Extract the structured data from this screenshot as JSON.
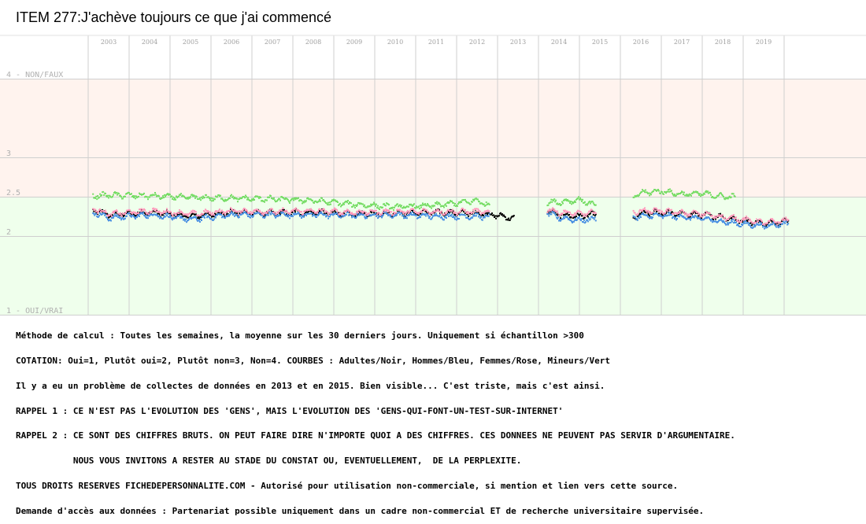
{
  "chart_data": {
    "type": "scatter",
    "title": "ITEM 277:J'achève toujours ce que j'ai commencé",
    "xlabel": "",
    "ylabel": "",
    "x_ticks": [
      "2003",
      "2004",
      "2005",
      "2006",
      "2007",
      "2008",
      "2009",
      "2010",
      "2011",
      "2012",
      "2013",
      "2014",
      "2015",
      "2016",
      "2017",
      "2018",
      "2019"
    ],
    "xlim": [
      2002.5,
      2020.2
    ],
    "y_ticks": [
      {
        "value": 4,
        "label": "4 - NON/FAUX"
      },
      {
        "value": 3,
        "label": "3"
      },
      {
        "value": 2.5,
        "label": "2.5"
      },
      {
        "value": 2,
        "label": "2"
      },
      {
        "value": 1,
        "label": "1 - OUI/VRAI"
      }
    ],
    "ylim": [
      1,
      4
    ],
    "grid": true,
    "band_colors": {
      "upper": "#fff3ee",
      "lower": "#efffec"
    },
    "series": [
      {
        "name": "Adultes",
        "color": "#000000",
        "segments": [
          {
            "x": [
              2002.6,
              2003,
              2004,
              2005,
              2006,
              2007,
              2008,
              2009,
              2010,
              2011,
              2012,
              2012.5,
              2012.9
            ],
            "y": [
              2.33,
              2.27,
              2.3,
              2.25,
              2.3,
              2.29,
              2.3,
              2.28,
              2.29,
              2.3,
              2.29,
              2.26,
              2.22
            ]
          },
          {
            "x": [
              2013.7,
              2014,
              2014.5,
              2014.9
            ],
            "y": [
              2.32,
              2.27,
              2.25,
              2.28
            ]
          },
          {
            "x": [
              2015.8,
              2016,
              2016.5,
              2017,
              2017.5,
              2018,
              2018.5,
              2019,
              2019.6
            ],
            "y": [
              2.22,
              2.29,
              2.3,
              2.28,
              2.27,
              2.24,
              2.19,
              2.16,
              2.19
            ]
          }
        ]
      },
      {
        "name": "Hommes",
        "color": "#4a90e2",
        "segments": [
          {
            "x": [
              2002.6,
              2003,
              2004,
              2005,
              2006,
              2007,
              2008,
              2009,
              2010,
              2011,
              2012,
              2012.3
            ],
            "y": [
              2.3,
              2.23,
              2.27,
              2.21,
              2.27,
              2.27,
              2.27,
              2.26,
              2.27,
              2.25,
              2.25,
              2.24
            ]
          },
          {
            "x": [
              2013.7,
              2014,
              2014.5,
              2014.9
            ],
            "y": [
              2.29,
              2.23,
              2.2,
              2.22
            ]
          },
          {
            "x": [
              2015.8,
              2016,
              2016.5,
              2017,
              2017.5,
              2018,
              2018.5,
              2019,
              2019.6
            ],
            "y": [
              2.24,
              2.25,
              2.26,
              2.24,
              2.22,
              2.18,
              2.15,
              2.13,
              2.16
            ]
          }
        ]
      },
      {
        "name": "Femmes",
        "color": "#ff99bb",
        "segments": [
          {
            "x": [
              2002.6,
              2003,
              2004,
              2005,
              2006,
              2007,
              2008,
              2009,
              2010,
              2011,
              2012,
              2012.3
            ],
            "y": [
              2.35,
              2.28,
              2.32,
              2.28,
              2.32,
              2.31,
              2.32,
              2.3,
              2.31,
              2.31,
              2.31,
              2.3
            ]
          },
          {
            "x": [
              2013.7,
              2014,
              2014.5,
              2014.9
            ],
            "y": [
              2.34,
              2.3,
              2.28,
              2.3
            ]
          },
          {
            "x": [
              2015.8,
              2016,
              2016.5,
              2017,
              2017.5,
              2018,
              2018.5,
              2019,
              2019.6
            ],
            "y": [
              2.3,
              2.32,
              2.32,
              2.29,
              2.28,
              2.24,
              2.21,
              2.17,
              2.2
            ]
          }
        ]
      },
      {
        "name": "Mineurs",
        "color": "#77dd66",
        "segments": [
          {
            "x": [
              2002.6,
              2003,
              2004,
              2005,
              2006,
              2007,
              2008,
              2009,
              2010,
              2011,
              2012,
              2012.3
            ],
            "y": [
              2.51,
              2.52,
              2.51,
              2.49,
              2.48,
              2.47,
              2.45,
              2.4,
              2.37,
              2.39,
              2.45,
              2.38
            ]
          },
          {
            "x": [
              2013.7,
              2014,
              2014.5,
              2014.9
            ],
            "y": [
              2.43,
              2.43,
              2.46,
              2.38
            ]
          },
          {
            "x": [
              2015.8,
              2016,
              2016.5,
              2017,
              2017.5,
              2018,
              2018.3
            ],
            "y": [
              2.5,
              2.55,
              2.57,
              2.53,
              2.54,
              2.5,
              2.5
            ]
          }
        ]
      }
    ]
  },
  "notes": [
    "Méthode de calcul : Toutes les semaines, la moyenne sur les 30 derniers jours. Uniquement si échantillon >300",
    "COTATION: Oui=1, Plutôt oui=2, Plutôt non=3, Non=4. COURBES : Adultes/Noir, Hommes/Bleu, Femmes/Rose, Mineurs/Vert",
    "Il y a eu un problème de collectes de données en 2013 et en 2015. Bien visible... C'est triste, mais c'est ainsi.",
    "RAPPEL 1 : CE N'EST PAS L'EVOLUTION DES 'GENS', MAIS L'EVOLUTION DES 'GENS-QUI-FONT-UN-TEST-SUR-INTERNET'",
    "RAPPEL 2 : CE SONT DES CHIFFRES BRUTS. ON PEUT FAIRE DIRE N'IMPORTE QUOI A DES CHIFFRES. CES DONNEES NE PEUVENT PAS SERVIR D'ARGUMENTAIRE.",
    "           NOUS VOUS INVITONS A RESTER AU STADE DU CONSTAT OU, EVENTUELLEMENT,  DE LA PERPLEXITE.",
    "TOUS DROITS RESERVES FICHEDEPERSONNALITE.COM - Autorisé pour utilisation non-commerciale, si mention et lien vers cette source.",
    "Demande d'accès aux données : Partenariat possible uniquement dans un cadre non-commercial ET de recherche universitaire supervisée."
  ]
}
